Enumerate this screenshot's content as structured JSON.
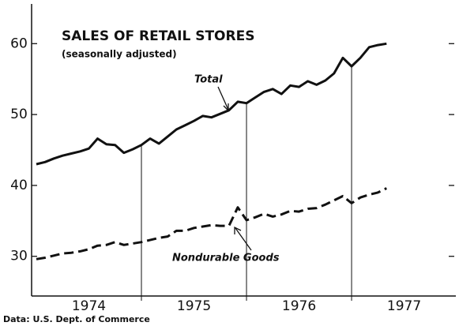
{
  "chart_data": {
    "type": "line",
    "title": "SALES OF RETAIL STORES",
    "subtitle": "(seasonally adjusted)",
    "source": "Data:  U.S. Dept. of Commerce",
    "x": [
      1974,
      1974.083,
      1974.167,
      1974.25,
      1974.333,
      1974.417,
      1974.5,
      1974.583,
      1974.667,
      1974.75,
      1974.833,
      1974.917,
      1975,
      1975.083,
      1975.167,
      1975.25,
      1975.333,
      1975.417,
      1975.5,
      1975.583,
      1975.667,
      1975.75,
      1975.833,
      1975.917,
      1976,
      1976.083,
      1976.167,
      1976.25,
      1976.333,
      1976.417,
      1976.5,
      1976.583,
      1976.667,
      1976.75,
      1976.833,
      1976.917,
      1977,
      1977.083,
      1977.167,
      1977.25,
      1977.333
    ],
    "series": [
      {
        "name": "Total",
        "color": "#111111",
        "dash": false,
        "values": [
          43,
          43.3,
          43.8,
          44.2,
          44.5,
          44.8,
          45.2,
          46.6,
          45.8,
          45.7,
          44.6,
          45.1,
          45.7,
          46.6,
          45.9,
          46.9,
          47.9,
          48.5,
          49.1,
          49.8,
          49.6,
          50.1,
          50.6,
          51.8,
          51.6,
          52.4,
          53.2,
          53.6,
          52.9,
          54.1,
          53.9,
          54.7,
          54.2,
          54.8,
          55.8,
          58,
          56.8,
          58,
          59.5,
          59.8,
          60
        ]
      },
      {
        "name": "Nondurable Goods",
        "color": "#111111",
        "dash": true,
        "values": [
          29.6,
          29.8,
          30.1,
          30.4,
          30.5,
          30.7,
          31.0,
          31.5,
          31.6,
          32.0,
          31.6,
          31.8,
          32.0,
          32.3,
          32.6,
          32.8,
          33.6,
          33.6,
          34.0,
          34.2,
          34.4,
          34.3,
          34.3,
          36.9,
          35.1,
          35.5,
          36.0,
          35.6,
          35.9,
          36.4,
          36.3,
          36.7,
          36.8,
          37.3,
          37.9,
          38.5,
          37.5,
          38.3,
          38.7,
          39.0,
          39.6
        ]
      }
    ],
    "xlim": [
      1973.955,
      1977.977
    ],
    "xticks": [
      {
        "value": 1974.5,
        "label": "1974"
      },
      {
        "value": 1975.5,
        "label": "1975"
      },
      {
        "value": 1976.5,
        "label": "1976"
      },
      {
        "value": 1977.5,
        "label": "1977"
      }
    ],
    "year_lines": [
      1975,
      1976,
      1977
    ],
    "ylim": [
      24.4,
      65.6
    ],
    "yticks": [
      30,
      40,
      50,
      60
    ]
  }
}
